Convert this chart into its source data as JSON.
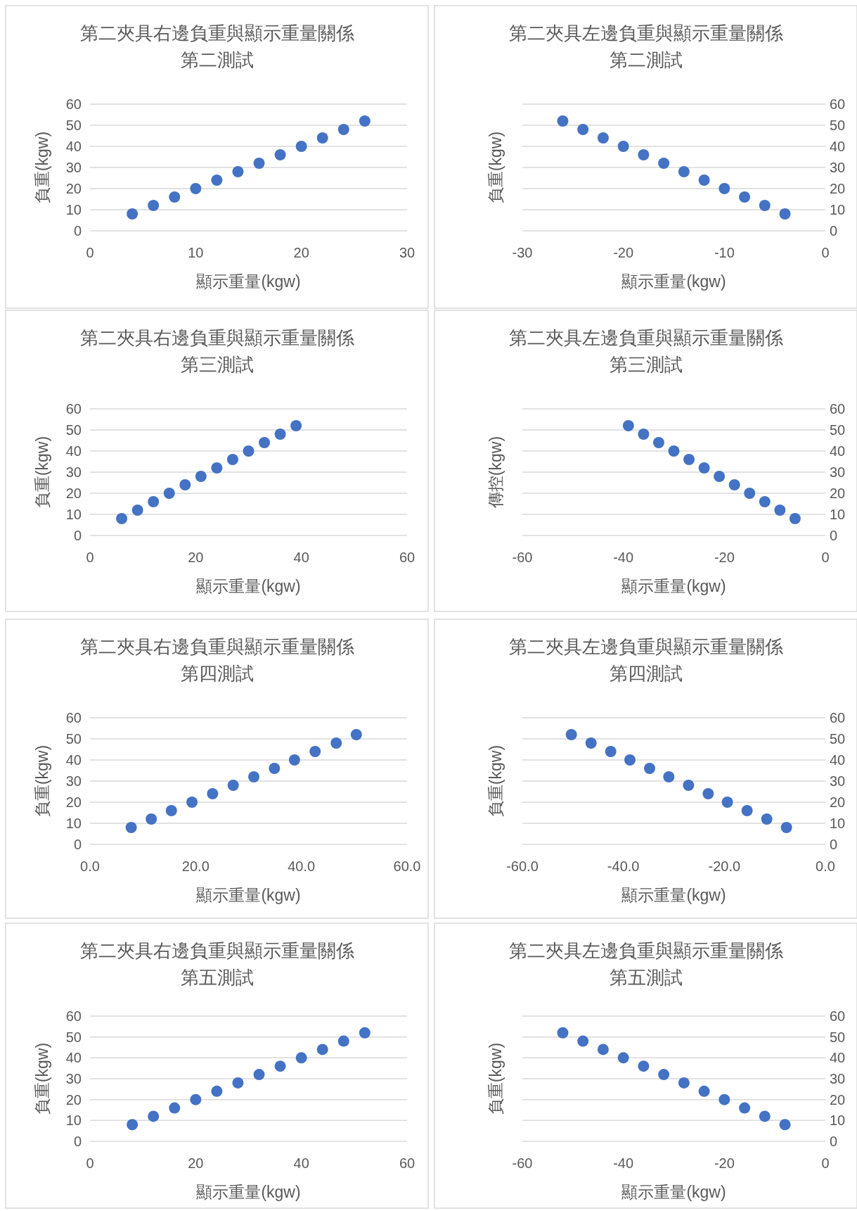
{
  "chart_data": [
    {
      "type": "scatter",
      "title": "第二夾具右邊負重與顯示重量關係",
      "subtitle": "第二測試",
      "xlabel": "顯示重量(kgw)",
      "ylabel": "負重(kgw)",
      "xlim": [
        0,
        30
      ],
      "xticks": [
        0,
        10,
        20,
        30
      ],
      "ylim": [
        0,
        60
      ],
      "yticks": [
        0,
        10,
        20,
        30,
        40,
        50,
        60
      ],
      "grid": "y",
      "marker": "circle",
      "color": "#4472c4",
      "x": [
        4,
        6,
        8,
        10,
        12,
        14,
        16,
        18,
        20,
        22,
        24,
        26
      ],
      "values": [
        8,
        12,
        16,
        20,
        24,
        28,
        32,
        36,
        40,
        44,
        48,
        52
      ]
    },
    {
      "type": "scatter",
      "title": "第二夾具左邊負重與顯示重量關係",
      "subtitle": "第二測試",
      "xlabel": "顯示重量(kgw)",
      "ylabel": "負重(kgw)",
      "xlim": [
        -30,
        0
      ],
      "xticks": [
        -30,
        -20,
        -10,
        0
      ],
      "ylim": [
        0,
        60
      ],
      "yticks": [
        0,
        10,
        20,
        30,
        40,
        50,
        60
      ],
      "grid": "y",
      "marker": "circle",
      "color": "#4472c4",
      "x": [
        -26,
        -24,
        -22,
        -20,
        -18,
        -16,
        -14,
        -12,
        -10,
        -8,
        -6,
        -4
      ],
      "values": [
        52,
        48,
        44,
        40,
        36,
        32,
        28,
        24,
        20,
        16,
        12,
        8
      ]
    },
    {
      "type": "scatter",
      "title": "第二夾具右邊負重與顯示重量關係",
      "subtitle": "第三測試",
      "xlabel": "顯示重量(kgw)",
      "ylabel": "負重(kgw)",
      "xlim": [
        0,
        60
      ],
      "xticks": [
        0,
        20,
        40,
        60
      ],
      "ylim": [
        0,
        60
      ],
      "yticks": [
        0,
        10,
        20,
        30,
        40,
        50,
        60
      ],
      "grid": "y",
      "marker": "circle",
      "color": "#4472c4",
      "x": [
        6,
        9,
        12,
        15,
        18,
        21,
        24,
        27,
        30,
        33,
        36,
        39
      ],
      "values": [
        8,
        12,
        16,
        20,
        24,
        28,
        32,
        36,
        40,
        44,
        48,
        52
      ]
    },
    {
      "type": "scatter",
      "title": "第二夾具左邊負重與顯示重量關係",
      "subtitle": "第三測試",
      "xlabel": "顯示重量(kgw)",
      "ylabel": "傳控(kgw)",
      "xlim": [
        -60,
        0
      ],
      "xticks": [
        -60,
        -40,
        -20,
        0
      ],
      "ylim": [
        0,
        60
      ],
      "yticks": [
        0,
        10,
        20,
        30,
        40,
        50,
        60
      ],
      "grid": "y",
      "marker": "circle",
      "color": "#4472c4",
      "x": [
        -39,
        -36,
        -33,
        -30,
        -27,
        -24,
        -21,
        -18,
        -15,
        -12,
        -9,
        -6
      ],
      "values": [
        52,
        48,
        44,
        40,
        36,
        32,
        28,
        24,
        20,
        16,
        12,
        8
      ]
    },
    {
      "type": "scatter",
      "title": "第二夾具右邊負重與顯示重量關係",
      "subtitle": "第四測試",
      "xlabel": "顯示重量(kgw)",
      "ylabel": "負重(kgw)",
      "xlim": [
        0,
        60
      ],
      "xticks": [
        {
          "value": 0,
          "label": "0.0"
        },
        {
          "value": 20,
          "label": "20.0"
        },
        {
          "value": 40,
          "label": "40.0"
        },
        {
          "value": 60,
          "label": "60.0"
        }
      ],
      "ylim": [
        0,
        60
      ],
      "yticks": [
        0,
        10,
        20,
        30,
        40,
        50,
        60
      ],
      "grid": "y",
      "marker": "circle",
      "color": "#4472c4",
      "x": [
        7.8,
        11.6,
        15.4,
        19.3,
        23.2,
        27.1,
        31.0,
        34.9,
        38.7,
        42.6,
        46.6,
        50.4
      ],
      "values": [
        8,
        12,
        16,
        20,
        24,
        28,
        32,
        36,
        40,
        44,
        48,
        52
      ]
    },
    {
      "type": "scatter",
      "title": "第二夾具左邊負重與顯示重量關係",
      "subtitle": "第四測試",
      "xlabel": "顯示重量(kgw)",
      "ylabel": "負重(kgw)",
      "xlim": [
        -60,
        0
      ],
      "xticks": [
        {
          "value": -60,
          "label": "-60.0"
        },
        {
          "value": -40,
          "label": "-40.0"
        },
        {
          "value": -20,
          "label": "-20.0"
        },
        {
          "value": 0,
          "label": "0.0"
        }
      ],
      "ylim": [
        0,
        60
      ],
      "yticks": [
        0,
        10,
        20,
        30,
        40,
        50,
        60
      ],
      "grid": "y",
      "marker": "circle",
      "color": "#4472c4",
      "x": [
        -50.3,
        -46.4,
        -42.5,
        -38.7,
        -34.8,
        -31.0,
        -27.1,
        -23.2,
        -19.4,
        -15.5,
        -11.6,
        -7.7
      ],
      "values": [
        52,
        48,
        44,
        40,
        36,
        32,
        28,
        24,
        20,
        16,
        12,
        8
      ]
    },
    {
      "type": "scatter",
      "title": "第二夾具右邊負重與顯示重量關係",
      "subtitle": "第五測試",
      "xlabel": "顯示重量(kgw)",
      "ylabel": "負重(kgw)",
      "xlim": [
        0,
        60
      ],
      "xticks": [
        0,
        20,
        40,
        60
      ],
      "ylim": [
        0,
        60
      ],
      "yticks": [
        0,
        10,
        20,
        30,
        40,
        50,
        60
      ],
      "grid": "y",
      "marker": "circle",
      "color": "#4472c4",
      "x": [
        8,
        12,
        16,
        20,
        24,
        28,
        32,
        36,
        40,
        44,
        48,
        52
      ],
      "values": [
        8,
        12,
        16,
        20,
        24,
        28,
        32,
        36,
        40,
        44,
        48,
        52
      ]
    },
    {
      "type": "scatter",
      "title": "第二夾具左邊負重與顯示重量關係",
      "subtitle": "第五測試",
      "xlabel": "顯示重量(kgw)",
      "ylabel": "負重(kgw)",
      "xlim": [
        -60,
        0
      ],
      "xticks": [
        -60,
        -40,
        -20,
        0
      ],
      "ylim": [
        0,
        60
      ],
      "yticks": [
        0,
        10,
        20,
        30,
        40,
        50,
        60
      ],
      "grid": "y",
      "marker": "circle",
      "color": "#4472c4",
      "x": [
        -52,
        -48,
        -44,
        -40,
        -36,
        -32,
        -28,
        -24,
        -20,
        -16,
        -12,
        -8
      ],
      "values": [
        52,
        48,
        44,
        40,
        36,
        32,
        28,
        24,
        20,
        16,
        12,
        8
      ]
    }
  ]
}
